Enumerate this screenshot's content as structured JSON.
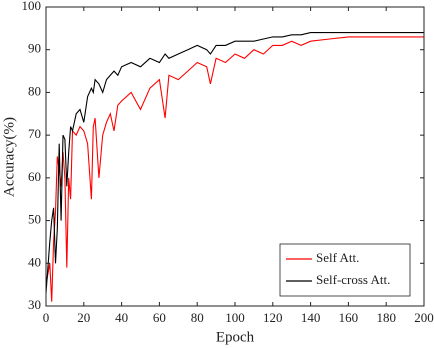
{
  "chart_data": {
    "type": "line",
    "x_label": "Epoch",
    "y_label": "Accuracy(%)",
    "x": [
      0,
      2,
      3,
      4,
      5,
      6,
      7,
      8,
      9,
      10,
      11,
      12,
      13,
      14,
      16,
      18,
      20,
      22,
      24,
      25,
      26,
      28,
      30,
      32,
      34,
      36,
      38,
      40,
      45,
      50,
      55,
      60,
      63,
      65,
      70,
      75,
      80,
      85,
      87,
      90,
      95,
      100,
      105,
      110,
      115,
      120,
      125,
      130,
      135,
      140,
      150,
      160,
      170,
      180,
      190,
      200
    ],
    "series": [
      {
        "name": "Self Att.",
        "color": "#ff0000",
        "values": [
          35,
          40,
          31,
          45,
          52,
          65,
          62,
          58,
          66,
          60,
          39,
          60,
          55,
          71,
          70,
          72,
          71,
          68,
          55,
          72,
          74,
          60,
          70,
          73,
          75,
          71,
          77,
          78,
          80,
          76,
          81,
          83,
          74,
          84,
          83,
          85,
          87,
          86,
          82,
          88,
          87,
          89,
          88,
          90,
          89,
          91,
          91,
          92,
          91,
          92,
          92.5,
          93,
          93,
          93,
          93,
          93
        ]
      },
      {
        "name": "Self-cross Att.",
        "color": "#000000",
        "values": [
          33,
          45,
          50,
          53,
          40,
          48,
          68,
          50,
          70,
          69,
          58,
          66,
          72,
          71,
          75,
          76,
          73,
          79,
          81,
          80,
          83,
          82,
          80,
          83,
          84,
          85,
          84,
          86,
          87,
          86,
          88,
          87,
          89,
          88,
          89,
          90,
          91,
          90,
          89,
          91,
          91,
          92,
          92,
          92,
          92.5,
          93,
          93,
          93.5,
          93.5,
          94,
          94,
          94,
          94,
          94,
          94,
          94
        ]
      }
    ],
    "xlim": [
      0,
      200
    ],
    "xticks": [
      0,
      20,
      40,
      60,
      80,
      100,
      120,
      140,
      160,
      180,
      200
    ],
    "ylim": [
      30,
      100
    ],
    "yticks": [
      30,
      40,
      50,
      60,
      70,
      80,
      90,
      100
    ],
    "legend": "lower right"
  }
}
